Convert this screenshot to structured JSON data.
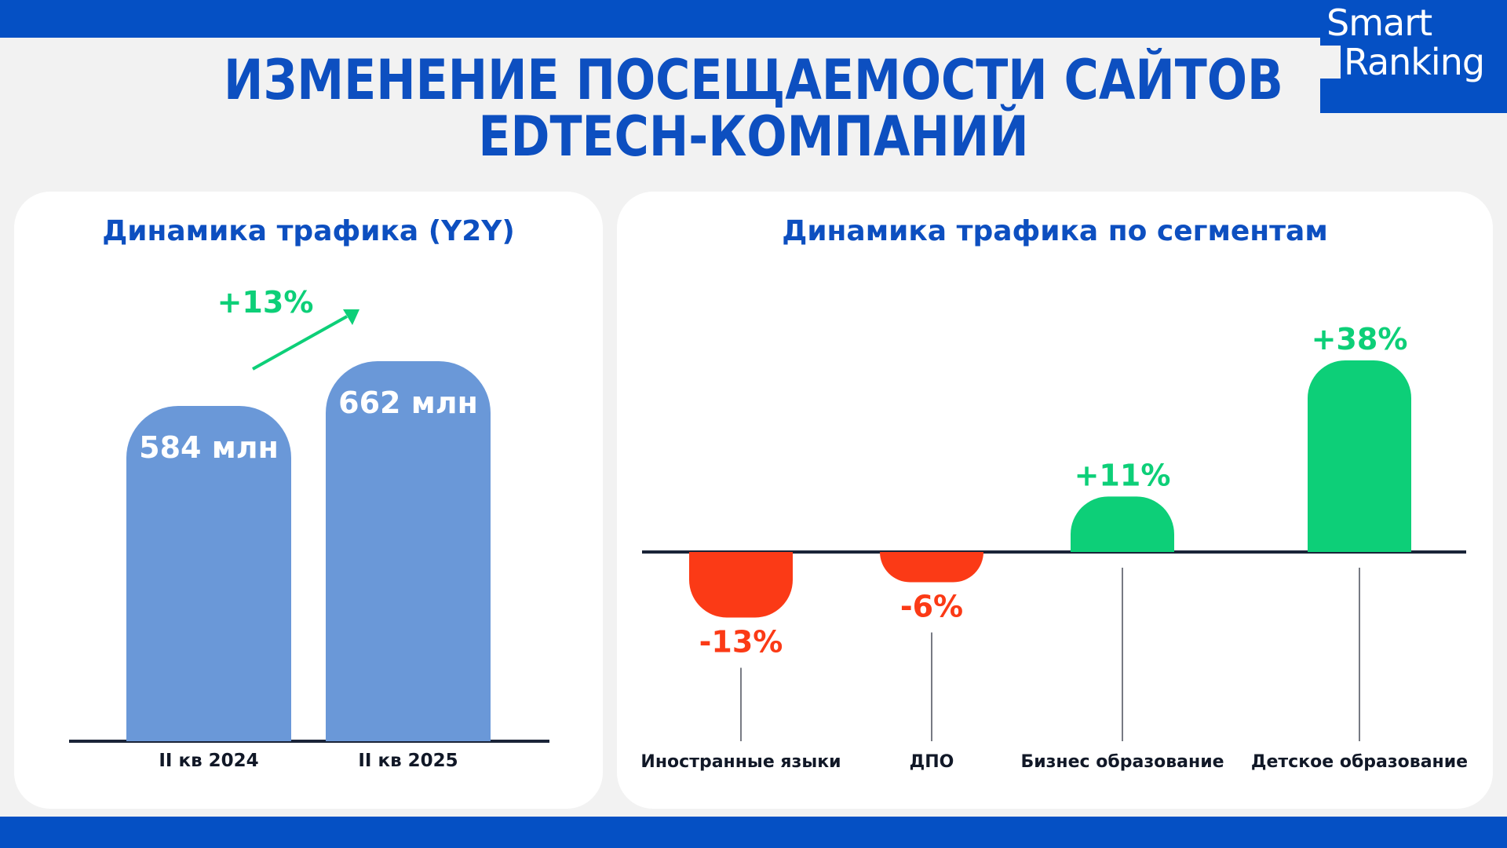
{
  "logo": {
    "line1": "Smart",
    "line2": "Ranking"
  },
  "title": {
    "line1": "ИЗМЕНЕНИЕ ПОСЕЩАЕМОСТИ САЙТОВ",
    "line2": "EDTECH-КОМПАНИЙ"
  },
  "colors": {
    "brand": "#0550c4",
    "title": "#0d4fc0",
    "bar_blue": "#6a98d8",
    "positive": "#0dcf78",
    "negative": "#fb3a16",
    "axis": "#1a2438"
  },
  "chart_data": [
    {
      "type": "bar",
      "title": "Динамика трафика (Y2Y)",
      "categories": [
        "II кв 2024",
        "II кв 2025"
      ],
      "values": [
        584,
        662
      ],
      "value_labels": [
        "584 млн",
        "662 млн"
      ],
      "unit": "млн",
      "change_label": "+13%",
      "ylim": [
        0,
        662
      ]
    },
    {
      "type": "bar",
      "title": "Динамика трафика по сегментам",
      "categories": [
        "Иностранные языки",
        "ДПО",
        "Бизнес образование",
        "Детское образование"
      ],
      "values": [
        -13,
        -6,
        11,
        38
      ],
      "value_labels": [
        "-13%",
        "-6%",
        "+11%",
        "+38%"
      ],
      "unit": "%",
      "ylim": [
        -13,
        38
      ]
    }
  ]
}
